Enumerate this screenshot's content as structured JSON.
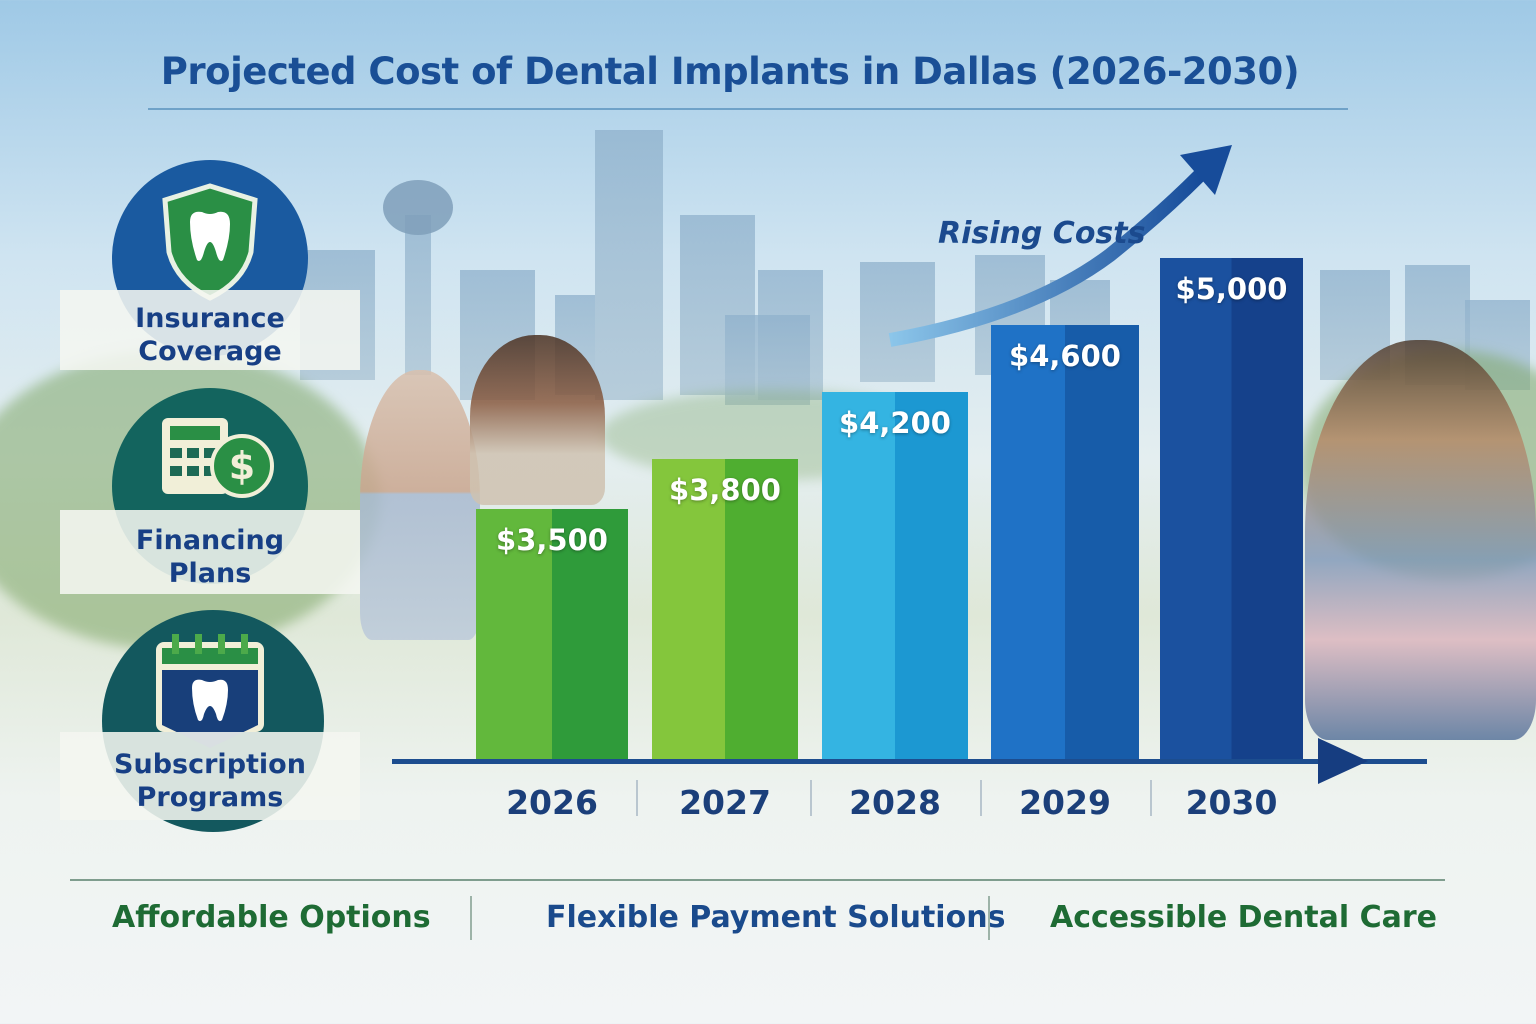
{
  "title": "Projected Cost of Dental Implants in Dallas (2026-2030)",
  "annotation": "Rising Costs",
  "sidebar": {
    "items": [
      {
        "label_line1": "Insurance",
        "label_line2": "Coverage",
        "icon": "shield-tooth-icon",
        "color": "#1a5aa0"
      },
      {
        "label_line1": "Financing",
        "label_line2": "Plans",
        "icon": "calculator-dollar-icon",
        "color": "#13645e"
      },
      {
        "label_line1": "Subscription",
        "label_line2": "Programs",
        "icon": "calendar-tooth-icon",
        "color": "#13585e"
      }
    ]
  },
  "footer": {
    "items": [
      {
        "label": "Affordable Options",
        "color": "#1e6b34"
      },
      {
        "label": "Flexible Payment Solutions",
        "color": "#1a4a8c"
      },
      {
        "label": "Accessible Dental Care",
        "color": "#1e6b34"
      }
    ]
  },
  "chart_data": {
    "type": "bar",
    "title": "Projected Cost of Dental Implants in Dallas (2026-2030)",
    "categories": [
      "2026",
      "2027",
      "2028",
      "2029",
      "2030"
    ],
    "values": [
      3500,
      3800,
      4200,
      4600,
      5000
    ],
    "data_labels": [
      "$3,500",
      "$3,800",
      "$4,200",
      "$4,600",
      "$5,000"
    ],
    "ylim": [
      2000,
      5200
    ],
    "grid": false,
    "xlabel": "",
    "ylabel": "",
    "colors": [
      [
        "#62b83c",
        "#2f9b3a"
      ],
      [
        "#84c63c",
        "#4fae30"
      ],
      [
        "#34b4e2",
        "#1c98d2"
      ],
      [
        "#1f72c6",
        "#175ca9"
      ],
      [
        "#1b519f",
        "#15418b"
      ]
    ]
  }
}
